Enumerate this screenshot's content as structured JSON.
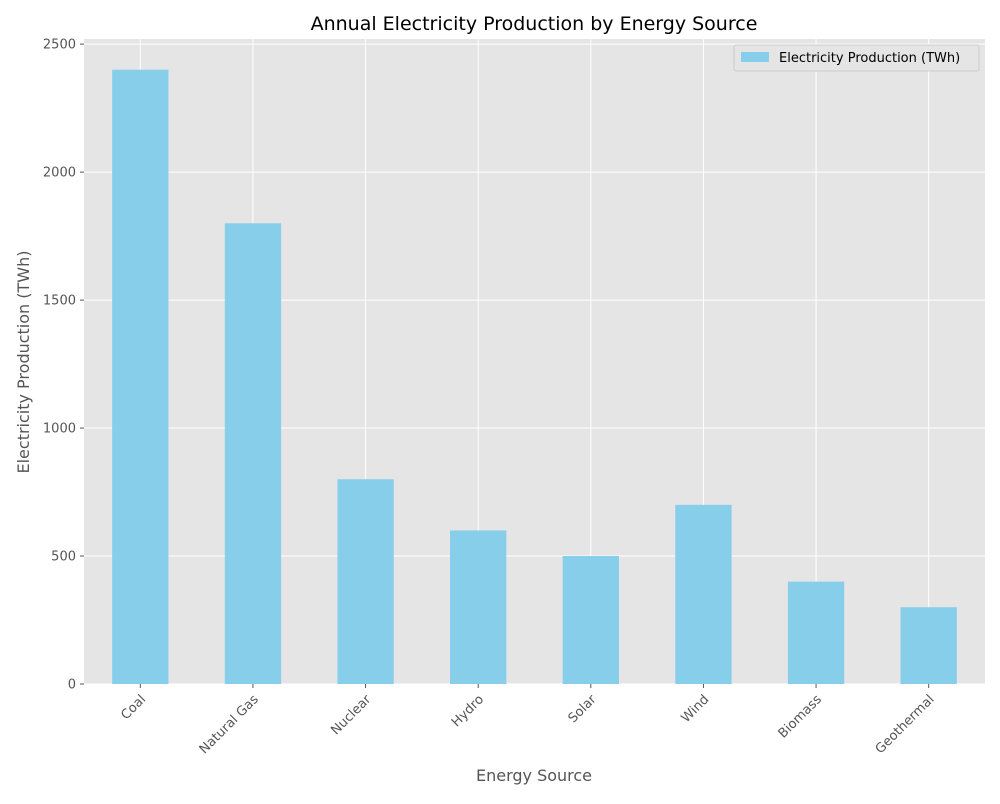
{
  "chart_data": {
    "type": "bar",
    "title": "Annual Electricity Production by Energy Source",
    "xlabel": "Energy Source",
    "ylabel": "Electricity Production (TWh)",
    "categories": [
      "Coal",
      "Natural Gas",
      "Nuclear",
      "Hydro",
      "Solar",
      "Wind",
      "Biomass",
      "Geothermal"
    ],
    "series": [
      {
        "name": "Electricity Production (TWh)",
        "values": [
          2400,
          1800,
          800,
          600,
          500,
          700,
          400,
          300
        ],
        "color": "#87CEEB"
      }
    ],
    "ylim": [
      0,
      2520
    ],
    "yticks": [
      0,
      500,
      1000,
      1500,
      2000,
      2500
    ],
    "grid": true,
    "legend_position": "top-right",
    "background_color": "#E5E5E5",
    "grid_color": "#FFFFFF"
  }
}
